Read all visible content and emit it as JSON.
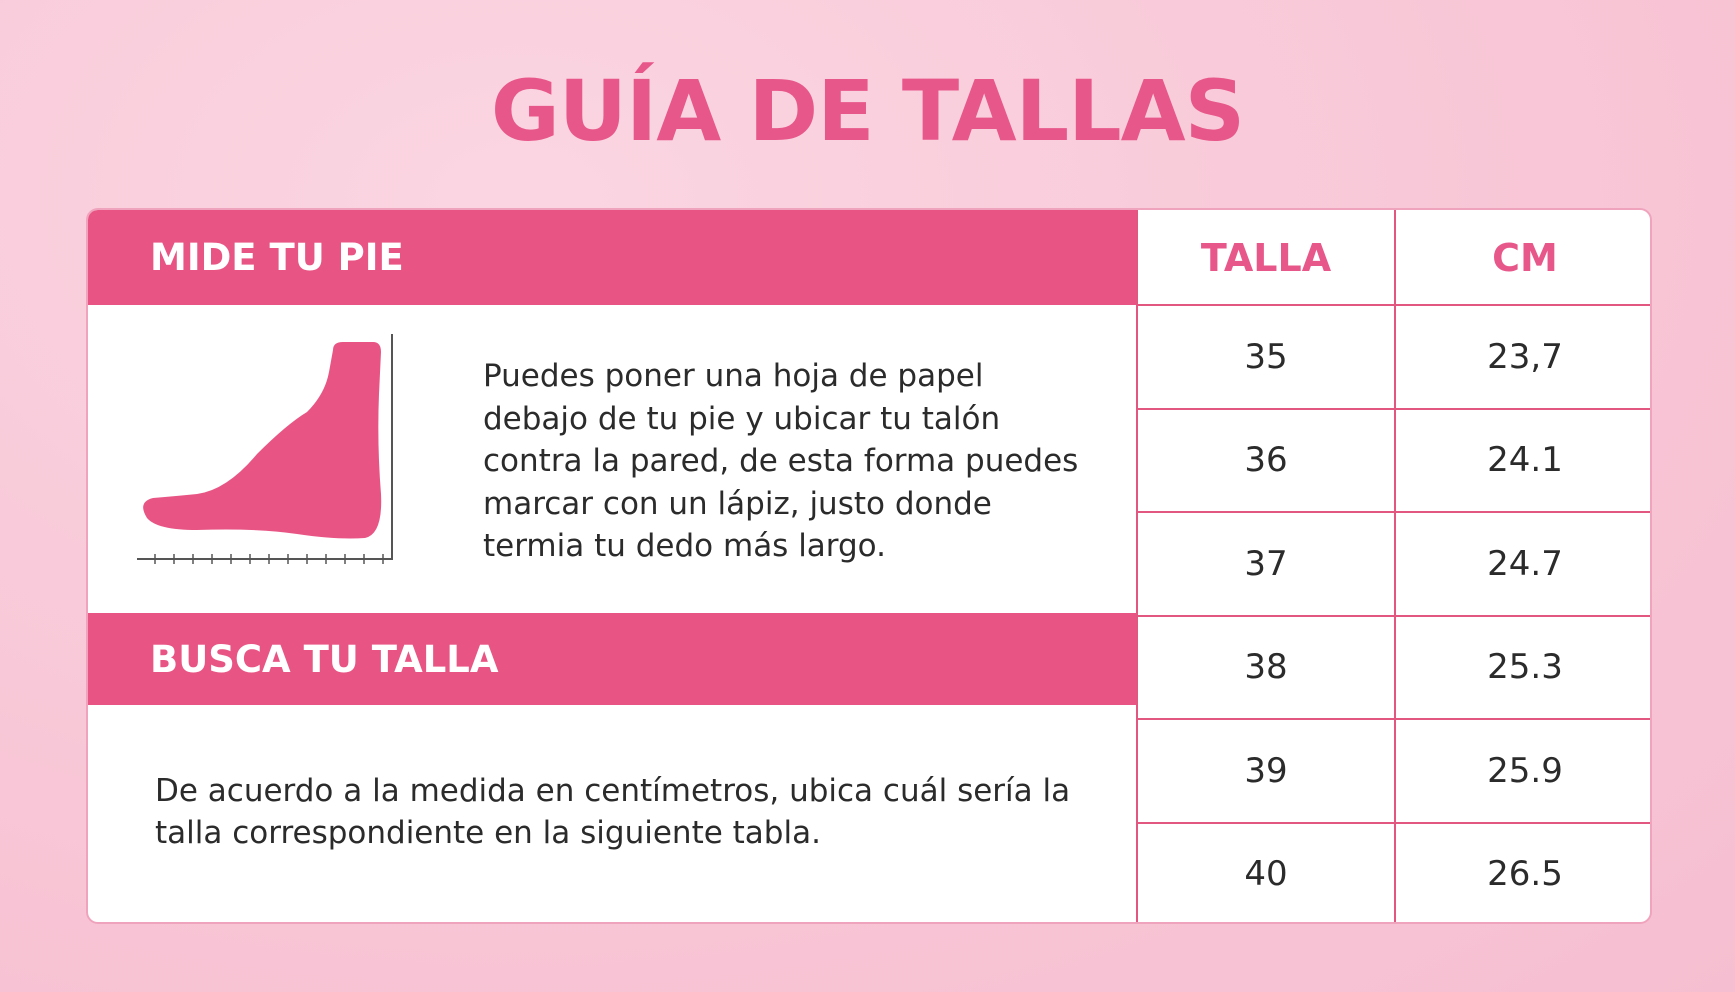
{
  "title": "GUÍA DE TALLAS",
  "section1": {
    "heading": "MIDE TU PIE",
    "text": "Puedes poner una hoja de papel debajo de tu pie y ubicar tu talón contra la pared, de esta forma puedes marcar con un lápiz, justo donde termia tu dedo más largo."
  },
  "section2": {
    "heading": "BUSCA TU TALLA",
    "text": "De acuerdo a la medida en centímetros, ubica cuál sería la talla correspondiente en la siguiente tabla."
  },
  "table": {
    "headers": [
      "TALLA",
      "CM"
    ],
    "rows": [
      [
        "35",
        "23,7"
      ],
      [
        "36",
        "24.1"
      ],
      [
        "37",
        "24.7"
      ],
      [
        "38",
        "25.3"
      ],
      [
        "39",
        "25.9"
      ],
      [
        "40",
        "26.5"
      ]
    ]
  },
  "colors": {
    "accent": "#e85585",
    "background": "#f8c6d6"
  },
  "icons": [
    "foot-measure-icon"
  ]
}
